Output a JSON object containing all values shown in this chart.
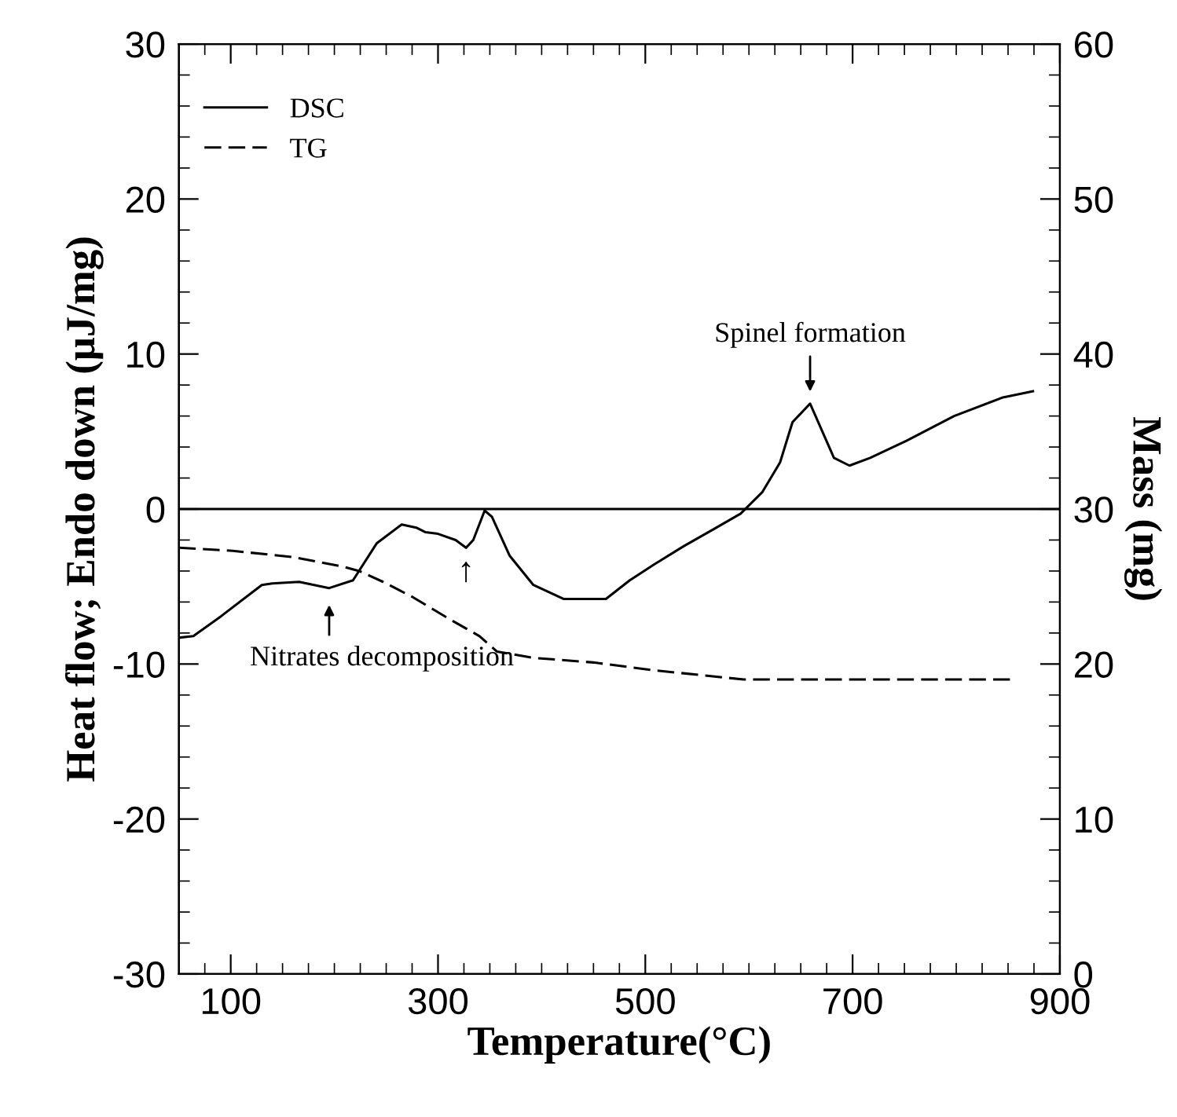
{
  "chart_data": {
    "type": "line",
    "xlabel": "Temperature(°C)",
    "ylabel": "Heat flow; Endo down (μJ/mg)",
    "y2label": "Mass (mg)",
    "xlim": [
      50,
      900
    ],
    "xticks": [
      {
        "value": 75,
        "label": null
      },
      100,
      {
        "value": 125,
        "label": null
      },
      {
        "value": 150,
        "label": null
      },
      {
        "value": 175,
        "label": null
      },
      {
        "value": 200,
        "label": null
      },
      {
        "value": 225,
        "label": null
      },
      {
        "value": 250,
        "label": null
      },
      {
        "value": 275,
        "label": null
      },
      300,
      {
        "value": 325,
        "label": null
      },
      {
        "value": 350,
        "label": null
      },
      {
        "value": 375,
        "label": null
      },
      {
        "value": 400,
        "label": null
      },
      {
        "value": 425,
        "label": null
      },
      {
        "value": 450,
        "label": null
      },
      {
        "value": 475,
        "label": null
      },
      500,
      {
        "value": 525,
        "label": null
      },
      {
        "value": 550,
        "label": null
      },
      {
        "value": 575,
        "label": null
      },
      {
        "value": 600,
        "label": null
      },
      {
        "value": 625,
        "label": null
      },
      {
        "value": 650,
        "label": null
      },
      {
        "value": 675,
        "label": null
      },
      700,
      {
        "value": 725,
        "label": null
      },
      {
        "value": 750,
        "label": null
      },
      {
        "value": 775,
        "label": null
      },
      {
        "value": 800,
        "label": null
      },
      {
        "value": 825,
        "label": null
      },
      {
        "value": 850,
        "label": null
      },
      {
        "value": 875,
        "label": null
      },
      900
    ],
    "ylim": [
      -30,
      30
    ],
    "yticks": [
      -30,
      {
        "value": -28,
        "label": null
      },
      {
        "value": -26,
        "label": null
      },
      {
        "value": -24,
        "label": null
      },
      {
        "value": -22,
        "label": null
      },
      -20,
      {
        "value": -18,
        "label": null
      },
      {
        "value": -16,
        "label": null
      },
      {
        "value": -14,
        "label": null
      },
      {
        "value": -12,
        "label": null
      },
      -10,
      {
        "value": -8,
        "label": null
      },
      {
        "value": -6,
        "label": null
      },
      {
        "value": -4,
        "label": null
      },
      {
        "value": -2,
        "label": null
      },
      0,
      {
        "value": 2,
        "label": null
      },
      {
        "value": 4,
        "label": null
      },
      {
        "value": 6,
        "label": null
      },
      {
        "value": 8,
        "label": null
      },
      10,
      {
        "value": 12,
        "label": null
      },
      {
        "value": 14,
        "label": null
      },
      {
        "value": 16,
        "label": null
      },
      {
        "value": 18,
        "label": null
      },
      20,
      {
        "value": 22,
        "label": null
      },
      {
        "value": 24,
        "label": null
      },
      {
        "value": 26,
        "label": null
      },
      {
        "value": 28,
        "label": null
      },
      30
    ],
    "y2lim": [
      0,
      60
    ],
    "y2ticks": [
      0,
      {
        "value": 2,
        "label": null
      },
      {
        "value": 4,
        "label": null
      },
      {
        "value": 6,
        "label": null
      },
      {
        "value": 8,
        "label": null
      },
      10,
      {
        "value": 12,
        "label": null
      },
      {
        "value": 14,
        "label": null
      },
      {
        "value": 16,
        "label": null
      },
      {
        "value": 18,
        "label": null
      },
      20,
      {
        "value": 22,
        "label": null
      },
      {
        "value": 24,
        "label": null
      },
      {
        "value": 26,
        "label": null
      },
      {
        "value": 28,
        "label": null
      },
      30,
      {
        "value": 32,
        "label": null
      },
      {
        "value": 34,
        "label": null
      },
      {
        "value": 36,
        "label": null
      },
      {
        "value": 38,
        "label": null
      },
      40,
      {
        "value": 42,
        "label": null
      },
      {
        "value": 44,
        "label": null
      },
      {
        "value": 46,
        "label": null
      },
      {
        "value": 48,
        "label": null
      },
      50,
      {
        "value": 52,
        "label": null
      },
      {
        "value": 54,
        "label": null
      },
      {
        "value": 56,
        "label": null
      },
      {
        "value": 58,
        "label": null
      },
      60
    ],
    "legend": "top left",
    "grid": false,
    "series": [
      {
        "name": "DSC",
        "color": "#000000",
        "line_style": "solid",
        "x": [
          50,
          64,
          91,
          130,
          140,
          166,
          195,
          218,
          241,
          265,
          279,
          288,
          300,
          317,
          327,
          334,
          345,
          352,
          369,
          392,
          421,
          462,
          485,
          508,
          537,
          566,
          592,
          613,
          630,
          642,
          659,
          682,
          697,
          717,
          752,
          798,
          845,
          874
        ],
        "values": [
          -8.3,
          -8.2,
          -6.9,
          -4.9,
          -4.8,
          -4.7,
          -5.1,
          -4.6,
          -2.2,
          -1.0,
          -1.2,
          -1.5,
          -1.6,
          -2.0,
          -2.5,
          -2.0,
          -0.1,
          -0.5,
          -3.0,
          -4.9,
          -5.8,
          -5.8,
          -4.6,
          -3.6,
          -2.4,
          -1.3,
          -0.3,
          1.1,
          3.0,
          5.6,
          6.8,
          3.3,
          2.8,
          3.3,
          4.4,
          6.0,
          7.2,
          7.6
        ]
      },
      {
        "name": "TG",
        "color": "#000000",
        "line_style": "dashed",
        "axis": "y2",
        "x": [
          50,
          102,
          160,
          207,
          224,
          247,
          276,
          311,
          340,
          357,
          392,
          450,
          508,
          595,
          856
        ],
        "values": [
          27.5,
          27.3,
          26.9,
          26.3,
          26.0,
          25.3,
          24.3,
          22.9,
          21.8,
          20.8,
          20.4,
          20.1,
          19.6,
          19.0,
          19.0
        ]
      }
    ],
    "ref_lines": [
      {
        "axis": "y",
        "value": 0,
        "color": "#000000",
        "line_style": "solid"
      }
    ],
    "annotations": [
      {
        "text": "Spinel formation",
        "x": 659,
        "y": 6.8
      },
      {
        "text": "Nitrates decomposition",
        "x": 195,
        "y": -5.1
      },
      {
        "text": "↑",
        "x": 327,
        "y": -2.5
      }
    ]
  }
}
